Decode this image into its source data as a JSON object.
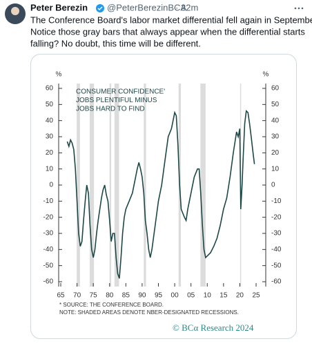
{
  "tweet": {
    "author": "Peter Berezin",
    "handle": "@PeterBerezinBCA",
    "separator": "·",
    "time": "32m",
    "text_lines": [
      "The Conference Board's labor market differential fell again in September.",
      "Notice those gray bars that always appear when the differential starts",
      "falling? No doubt, this time will be different."
    ]
  },
  "chart_data": {
    "type": "line",
    "annotation_lines": [
      "CONSUMER CONFIDENCE'",
      "JOBS PLENTIFUL MINUS",
      "JOBS HARD TO FIND"
    ],
    "y_unit": "%",
    "y2_unit": "%",
    "source_lines": [
      "* SOURCE: THE CONFERENCE BOARD.",
      "NOTE: SHADED AREAS DENOTE NBER-DESIGNATED RECESSIONS."
    ],
    "credit": "© BCα Research 2024",
    "x": [
      1967,
      1967.5,
      1968,
      1968.5,
      1969,
      1969.5,
      1970,
      1970.5,
      1971,
      1971.5,
      1972,
      1972.5,
      1973,
      1973.5,
      1974,
      1974.5,
      1975,
      1975.5,
      1976,
      1976.5,
      1977,
      1977.5,
      1978,
      1978.5,
      1979,
      1979.5,
      1980,
      1980.5,
      1981,
      1981.5,
      1982,
      1982.5,
      1983,
      1983.5,
      1984,
      1984.5,
      1985,
      1986,
      1987,
      1988,
      1988.5,
      1989,
      1989.5,
      1990,
      1990.5,
      1991,
      1991.5,
      1992,
      1992.5,
      1993,
      1994,
      1995,
      1996,
      1997,
      1998,
      1999,
      2000,
      2000.5,
      2001,
      2001.5,
      2002,
      2003,
      2003.5,
      2004,
      2005,
      2006,
      2007,
      2007.5,
      2008,
      2008.5,
      2009,
      2009.5,
      2010,
      2011,
      2012,
      2013,
      2014,
      2015,
      2016,
      2017,
      2018,
      2019,
      2019.5,
      2020,
      2020.3,
      2020.7,
      2021,
      2021.5,
      2022,
      2022.5,
      2023,
      2023.5,
      2024,
      2024.5
    ],
    "series": [
      {
        "color": "#1d4746",
        "values": [
          27,
          24,
          28,
          26,
          22,
          10,
          -10,
          -30,
          -38,
          -35,
          -22,
          -10,
          0,
          -5,
          -25,
          -40,
          -45,
          -40,
          -30,
          -22,
          -15,
          -8,
          -3,
          0,
          -6,
          -10,
          -22,
          -35,
          -30,
          -30,
          -45,
          -55,
          -58,
          -45,
          -30,
          -20,
          -15,
          -10,
          -5,
          5,
          10,
          14,
          10,
          5,
          -5,
          -22,
          -30,
          -40,
          -45,
          -40,
          -25,
          -10,
          0,
          15,
          30,
          35,
          45,
          43,
          25,
          0,
          -15,
          -20,
          -22,
          -15,
          -5,
          5,
          10,
          10,
          -5,
          -25,
          -40,
          -45,
          -44,
          -42,
          -38,
          -33,
          -25,
          -15,
          -8,
          5,
          20,
          33,
          30,
          35,
          -15,
          0,
          15,
          38,
          46,
          45,
          38,
          30,
          21,
          13
        ]
      }
    ],
    "recessions": [
      [
        1969.9,
        1970.9
      ],
      [
        1973.9,
        1975.2
      ],
      [
        1980,
        1980.5
      ],
      [
        1981.5,
        1982.9
      ],
      [
        1990.5,
        1991.2
      ],
      [
        2001.2,
        2001.9
      ],
      [
        2007.9,
        2009.5
      ],
      [
        2020.1,
        2020.4
      ]
    ],
    "recession_color": "#dcdcdc",
    "xlim": [
      1965,
      2027
    ],
    "xticks": [
      {
        "value": 1965,
        "label": "65"
      },
      {
        "value": 1970,
        "label": "70"
      },
      {
        "value": 1975,
        "label": "75"
      },
      {
        "value": 1980,
        "label": "80"
      },
      {
        "value": 1985,
        "label": "85"
      },
      {
        "value": 1990,
        "label": "90"
      },
      {
        "value": 1995,
        "label": "95"
      },
      {
        "value": 2000,
        "label": "00"
      },
      {
        "value": 2005,
        "label": "05"
      },
      {
        "value": 2010,
        "label": "10"
      },
      {
        "value": 2015,
        "label": "15"
      },
      {
        "value": 2020,
        "label": "20"
      },
      {
        "value": 2025,
        "label": "25"
      }
    ],
    "ylim": [
      -63,
      63
    ],
    "yticks": [
      -60,
      -50,
      -40,
      -30,
      -20,
      -10,
      0,
      10,
      20,
      30,
      40,
      50,
      60
    ],
    "y2lim": [
      -63,
      63
    ],
    "y2ticks": [
      -60,
      -50,
      -40,
      -30,
      -20,
      -10,
      0,
      10,
      20,
      30,
      40,
      50,
      60
    ]
  }
}
